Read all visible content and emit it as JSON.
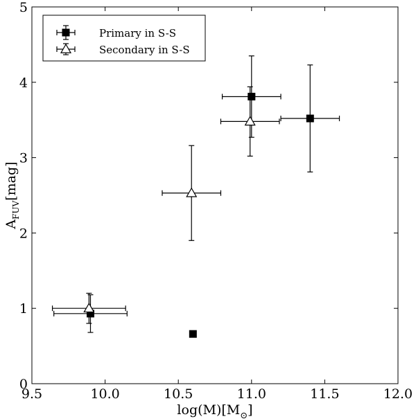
{
  "chart_data": {
    "type": "scatter",
    "xlim": [
      9.5,
      12.0
    ],
    "ylim": [
      0,
      5
    ],
    "x_ticks": [
      "9.5",
      "10.0",
      "10.5",
      "11.0",
      "11.5",
      "12.0"
    ],
    "y_ticks": [
      "0",
      "1",
      "2",
      "3",
      "4",
      "5"
    ],
    "xlabel": {
      "main": "log(M)[M",
      "sub": "⊙",
      "close": "]"
    },
    "ylabel": {
      "main": "A",
      "sub": "FUV",
      "rest": "[mag]"
    },
    "legend_position": "top-left",
    "series": [
      {
        "name": "Primary in S-S",
        "marker": "square-filled",
        "points": [
          {
            "x": 9.9,
            "y": 0.93,
            "xerr": 0.25,
            "yerr": 0.25
          },
          {
            "x": 10.6,
            "y": 0.66,
            "xerr": 0,
            "yerr": 0
          },
          {
            "x": 11.0,
            "y": 3.81,
            "xerr": 0.2,
            "yerr": 0.54
          },
          {
            "x": 11.4,
            "y": 3.52,
            "xerr": 0.2,
            "yerr": 0.71
          }
        ]
      },
      {
        "name": "Secondary in S-S",
        "marker": "triangle-open",
        "points": [
          {
            "x": 9.89,
            "y": 1.0,
            "xerr": 0.25,
            "yerr": 0.2
          },
          {
            "x": 10.59,
            "y": 2.53,
            "xerr": 0.2,
            "yerr": 0.63
          },
          {
            "x": 10.99,
            "y": 3.48,
            "xerr": 0.2,
            "yerr": 0.46
          }
        ]
      }
    ]
  }
}
